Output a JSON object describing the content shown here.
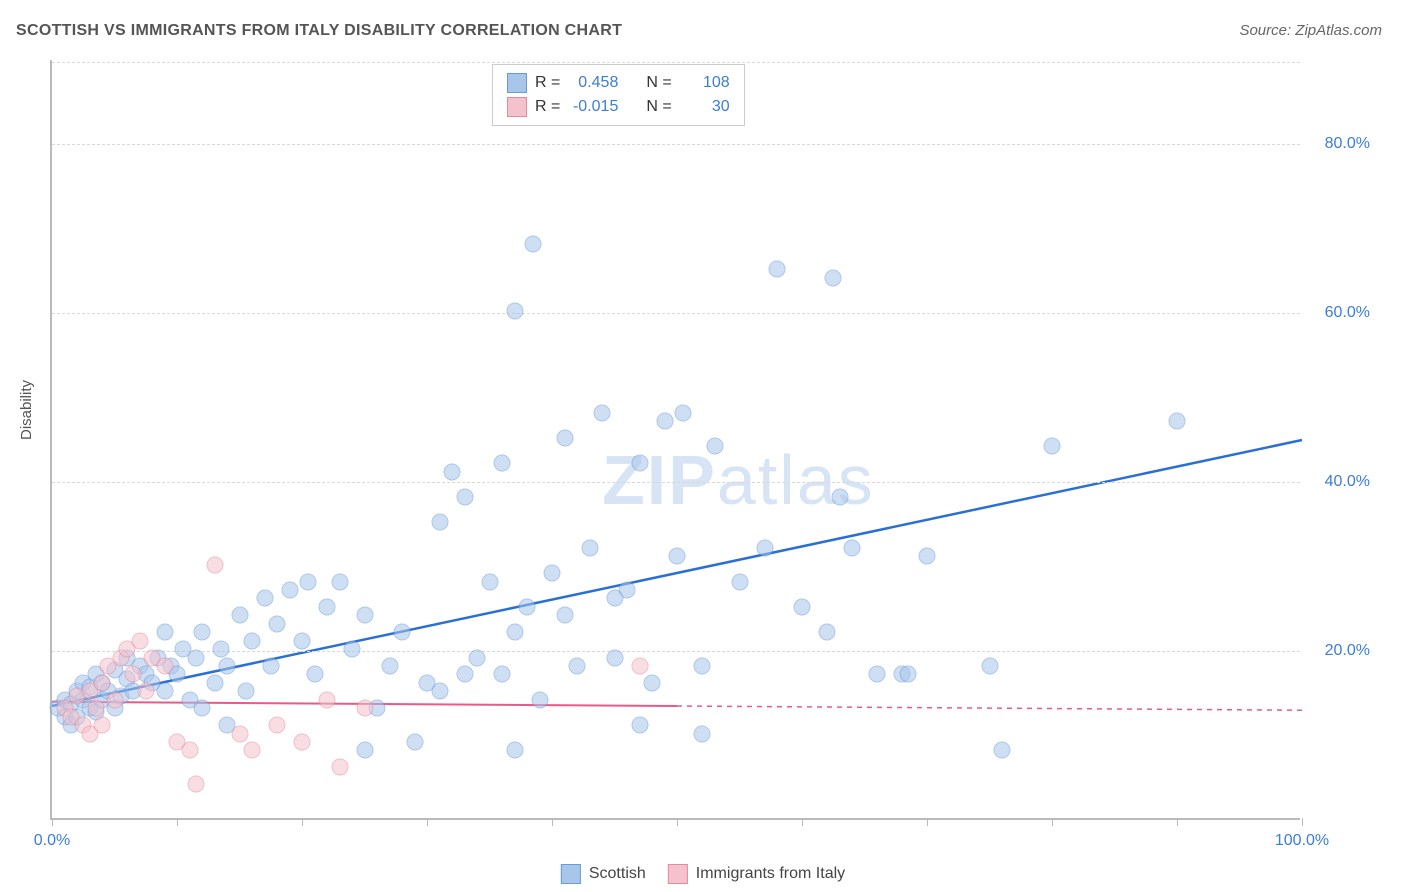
{
  "title": "SCOTTISH VS IMMIGRANTS FROM ITALY DISABILITY CORRELATION CHART",
  "source": "Source: ZipAtlas.com",
  "ylabel": "Disability",
  "watermark": {
    "z": "Z",
    "i": "I",
    "p": "P",
    "rest": "atlas"
  },
  "chart": {
    "type": "scatter",
    "xlim": [
      0,
      100
    ],
    "ylim": [
      0,
      90
    ],
    "x_ticks": [
      0,
      10,
      20,
      30,
      40,
      50,
      60,
      70,
      80,
      90,
      100
    ],
    "x_tick_labels": {
      "0": "0.0%",
      "100": "100.0%"
    },
    "y_ticks": [
      20,
      40,
      60,
      80
    ],
    "y_tick_labels": {
      "20": "20.0%",
      "40": "40.0%",
      "60": "60.0%",
      "80": "80.0%"
    },
    "background_color": "#ffffff",
    "grid_color": "#d8d8d8",
    "axis_color": "#bababa",
    "tick_label_color": "#3b7dd8",
    "series": [
      {
        "name": "Scottish",
        "color_fill": "#a8c5ea",
        "color_stroke": "#6a9bd8",
        "r_label": "R =",
        "r_value": "0.458",
        "n_label": "N =",
        "n_value": "108",
        "trend": {
          "x1": 0,
          "y1": 13.5,
          "x2": 100,
          "y2": 45,
          "dash_from_x": 100,
          "color": "#2a6fd6",
          "width": 2.5
        },
        "points": [
          [
            0.5,
            13
          ],
          [
            1,
            12
          ],
          [
            1,
            14
          ],
          [
            1.5,
            11
          ],
          [
            1.5,
            13.5
          ],
          [
            2,
            15
          ],
          [
            2,
            12
          ],
          [
            2.5,
            14
          ],
          [
            2.5,
            16
          ],
          [
            3,
            13
          ],
          [
            3,
            15.5
          ],
          [
            3.5,
            12.5
          ],
          [
            3.5,
            17
          ],
          [
            4,
            14
          ],
          [
            4,
            16
          ],
          [
            4.5,
            15
          ],
          [
            5,
            13
          ],
          [
            5,
            17.5
          ],
          [
            5.5,
            14.5
          ],
          [
            6,
            16.5
          ],
          [
            6,
            19
          ],
          [
            6.5,
            15
          ],
          [
            7,
            18
          ],
          [
            7.5,
            17
          ],
          [
            8,
            16
          ],
          [
            8.5,
            19
          ],
          [
            9,
            15
          ],
          [
            9.5,
            18
          ],
          [
            10,
            17
          ],
          [
            10.5,
            20
          ],
          [
            11,
            14
          ],
          [
            11.5,
            19
          ],
          [
            12,
            22
          ],
          [
            13,
            16
          ],
          [
            13.5,
            20
          ],
          [
            14,
            18
          ],
          [
            15,
            24
          ],
          [
            15.5,
            15
          ],
          [
            16,
            21
          ],
          [
            17,
            26
          ],
          [
            17.5,
            18
          ],
          [
            18,
            23
          ],
          [
            19,
            27
          ],
          [
            20,
            21
          ],
          [
            20.5,
            28
          ],
          [
            21,
            17
          ],
          [
            22,
            25
          ],
          [
            23,
            28
          ],
          [
            24,
            20
          ],
          [
            25,
            24
          ],
          [
            26,
            13
          ],
          [
            27,
            18
          ],
          [
            28,
            22
          ],
          [
            29,
            9
          ],
          [
            30,
            16
          ],
          [
            31,
            35
          ],
          [
            31,
            15
          ],
          [
            32,
            41
          ],
          [
            33,
            38
          ],
          [
            34,
            19
          ],
          [
            35,
            28
          ],
          [
            36,
            17
          ],
          [
            36,
            42
          ],
          [
            37,
            8
          ],
          [
            37,
            60
          ],
          [
            38,
            25
          ],
          [
            38.5,
            68
          ],
          [
            39,
            14
          ],
          [
            40,
            29
          ],
          [
            41,
            45
          ],
          [
            42,
            18
          ],
          [
            43,
            32
          ],
          [
            44,
            48
          ],
          [
            45,
            19
          ],
          [
            46,
            27
          ],
          [
            47,
            42
          ],
          [
            47,
            11
          ],
          [
            48,
            16
          ],
          [
            49,
            47
          ],
          [
            50,
            31
          ],
          [
            50.5,
            48
          ],
          [
            52,
            18
          ],
          [
            52,
            10
          ],
          [
            53,
            44
          ],
          [
            55,
            28
          ],
          [
            57,
            32
          ],
          [
            58,
            65
          ],
          [
            60,
            25
          ],
          [
            62,
            22
          ],
          [
            62.5,
            64
          ],
          [
            63,
            38
          ],
          [
            64,
            32
          ],
          [
            66,
            17
          ],
          [
            68,
            17
          ],
          [
            68.5,
            17
          ],
          [
            70,
            31
          ],
          [
            75,
            18
          ],
          [
            76,
            8
          ],
          [
            80,
            44
          ],
          [
            90,
            47
          ],
          [
            9,
            22
          ],
          [
            12,
            13
          ],
          [
            14,
            11
          ],
          [
            25,
            8
          ],
          [
            45,
            26
          ],
          [
            37,
            22
          ],
          [
            33,
            17
          ],
          [
            41,
            24
          ]
        ]
      },
      {
        "name": "Immigrants from Italy",
        "color_fill": "#f4c2cd",
        "color_stroke": "#e68aa0",
        "r_label": "R =",
        "r_value": "-0.015",
        "n_label": "N =",
        "n_value": "30",
        "trend": {
          "x1": 0,
          "y1": 14,
          "x2": 50,
          "y2": 13.5,
          "dash_from_x": 50,
          "dash_to_x": 100,
          "dash_to_y": 13,
          "color": "#e85a8a",
          "width": 2
        },
        "points": [
          [
            1,
            13
          ],
          [
            1.5,
            12
          ],
          [
            2,
            14.5
          ],
          [
            2.5,
            11
          ],
          [
            3,
            15
          ],
          [
            3.5,
            13
          ],
          [
            4,
            16
          ],
          [
            4.5,
            18
          ],
          [
            5,
            14
          ],
          [
            5.5,
            19
          ],
          [
            6,
            20
          ],
          [
            6.5,
            17
          ],
          [
            7,
            21
          ],
          [
            7.5,
            15
          ],
          [
            8,
            19
          ],
          [
            9,
            18
          ],
          [
            10,
            9
          ],
          [
            11,
            8
          ],
          [
            11.5,
            4
          ],
          [
            13,
            30
          ],
          [
            15,
            10
          ],
          [
            16,
            8
          ],
          [
            18,
            11
          ],
          [
            20,
            9
          ],
          [
            22,
            14
          ],
          [
            23,
            6
          ],
          [
            25,
            13
          ],
          [
            47,
            18
          ],
          [
            3,
            10
          ],
          [
            4,
            11
          ]
        ]
      }
    ]
  },
  "bottom_legend": [
    {
      "label": "Scottish",
      "fill": "#a8c5ea",
      "stroke": "#6a9bd8"
    },
    {
      "label": "Immigrants from Italy",
      "fill": "#f4c2cd",
      "stroke": "#e68aa0"
    }
  ]
}
